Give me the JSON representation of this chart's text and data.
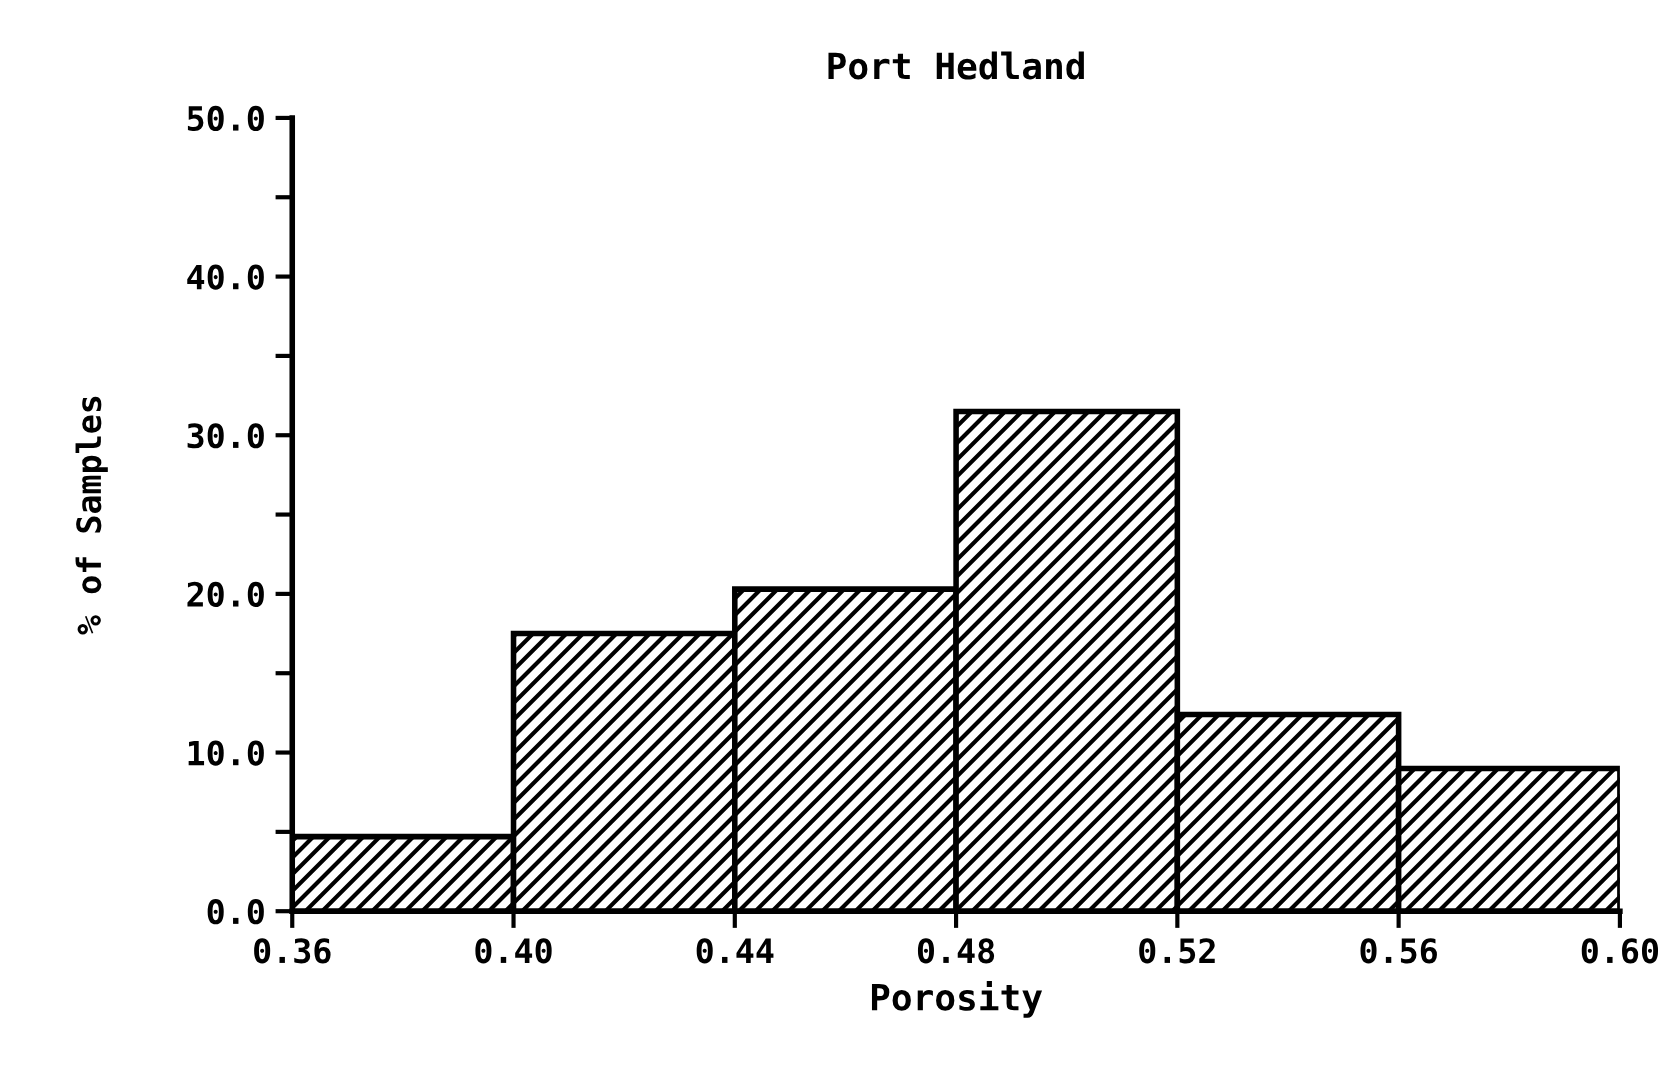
{
  "chart_data": {
    "type": "histogram",
    "title": "Port Hedland",
    "xlabel": "Porosity",
    "ylabel": "% of Samples",
    "bins": [
      0.36,
      0.4,
      0.44,
      0.48,
      0.52,
      0.56,
      0.6
    ],
    "values": [
      4.7,
      17.5,
      20.3,
      31.5,
      12.4,
      9.0
    ],
    "color": "#000000",
    "xlim": [
      0.36,
      0.6
    ],
    "ylim": [
      0,
      50
    ],
    "xticks": [
      0.36,
      {
        "value": 0.4,
        "label": "0.40"
      },
      0.44,
      0.48,
      0.52,
      0.56,
      {
        "value": 0.6,
        "label": "0.60"
      }
    ],
    "yticks": [
      {
        "value": 0,
        "label": "0.0"
      },
      {
        "value": 5,
        "label": null
      },
      {
        "value": 10,
        "label": "10.0"
      },
      {
        "value": 15,
        "label": null
      },
      {
        "value": 20,
        "label": "20.0"
      },
      {
        "value": 25,
        "label": null
      },
      {
        "value": 30,
        "label": "30.0"
      },
      {
        "value": 35,
        "label": null
      },
      {
        "value": 40,
        "label": "40.0"
      },
      {
        "value": 45,
        "label": null
      },
      {
        "value": 50,
        "label": "50.0"
      }
    ],
    "grid": false,
    "legend": false
  }
}
